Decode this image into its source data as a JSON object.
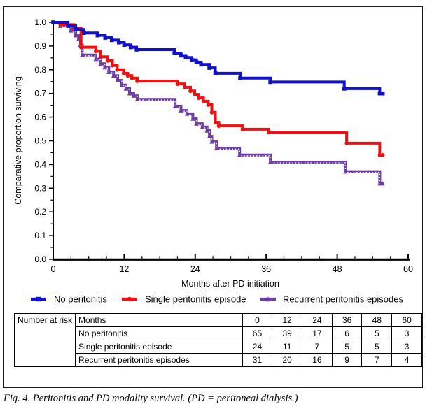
{
  "figure": {
    "caption": "Fig. 4. Peritonitis and PD modality survival. (PD = peritoneal dialysis.)"
  },
  "chart_data": {
    "type": "line",
    "subtype": "kaplan-meier-step",
    "title": "",
    "xlabel": "Months after PD initiation",
    "ylabel": "Comparative proportion surviving",
    "xlim": [
      0,
      60
    ],
    "ylim": [
      0.0,
      1.0
    ],
    "xticks": [
      0,
      12,
      24,
      36,
      48,
      60
    ],
    "xtick_labels": [
      "0",
      "12",
      "24",
      "36",
      "48",
      "60"
    ],
    "x_minor_step": 3,
    "yticks": [
      0.0,
      0.1,
      0.2,
      0.3,
      0.4,
      0.5,
      0.6,
      0.7,
      0.8,
      0.9,
      1.0
    ],
    "ytick_labels": [
      "0.0",
      "0.1",
      "0.2",
      "0.3",
      "0.4",
      "0.5",
      "0.6",
      "0.7",
      "0.8",
      "0.9",
      "1.0"
    ],
    "y_minor_step": 0.05,
    "grid": false,
    "legend_position": "below",
    "axis_color": "#000000",
    "series": [
      {
        "name": "Recurrent peritonitis episodes",
        "color": "#6e3fa3",
        "marker": "triangle",
        "white_dash_overlay": true,
        "end_x": 55.7,
        "points": [
          [
            0,
            1.0
          ],
          [
            1.2,
            0.985
          ],
          [
            3,
            0.965
          ],
          [
            3.8,
            0.945
          ],
          [
            4.3,
            0.93
          ],
          [
            4.6,
            0.905
          ],
          [
            4.9,
            0.862
          ],
          [
            7.2,
            0.845
          ],
          [
            8,
            0.825
          ],
          [
            8.7,
            0.81
          ],
          [
            9.4,
            0.79
          ],
          [
            10.2,
            0.775
          ],
          [
            10.9,
            0.755
          ],
          [
            11.6,
            0.735
          ],
          [
            12.3,
            0.72
          ],
          [
            12.9,
            0.7
          ],
          [
            13.6,
            0.69
          ],
          [
            14.2,
            0.675
          ],
          [
            20.6,
            0.646
          ],
          [
            21.6,
            0.628
          ],
          [
            22.6,
            0.614
          ],
          [
            23.6,
            0.593
          ],
          [
            24.2,
            0.572
          ],
          [
            25.2,
            0.558
          ],
          [
            26,
            0.543
          ],
          [
            26.4,
            0.519
          ],
          [
            26.8,
            0.496
          ],
          [
            27.6,
            0.468
          ],
          [
            31.5,
            0.44
          ],
          [
            36.7,
            0.41
          ],
          [
            49.4,
            0.37
          ],
          [
            55.2,
            0.32
          ]
        ]
      },
      {
        "name": "Single peritonitis episode",
        "color": "#ee1111",
        "marker": "circle",
        "white_dash_overlay": false,
        "end_x": 55.7,
        "points": [
          [
            0,
            1.0
          ],
          [
            1.2,
            0.99
          ],
          [
            3.5,
            0.975
          ],
          [
            4.7,
            0.895
          ],
          [
            7.2,
            0.878
          ],
          [
            8,
            0.855
          ],
          [
            9.2,
            0.838
          ],
          [
            10,
            0.818
          ],
          [
            10.8,
            0.8
          ],
          [
            11.9,
            0.785
          ],
          [
            12.6,
            0.775
          ],
          [
            13.3,
            0.765
          ],
          [
            14.2,
            0.752
          ],
          [
            21,
            0.74
          ],
          [
            22.2,
            0.726
          ],
          [
            23.2,
            0.71
          ],
          [
            23.9,
            0.696
          ],
          [
            24.6,
            0.681
          ],
          [
            25.4,
            0.667
          ],
          [
            26.2,
            0.652
          ],
          [
            26.8,
            0.62
          ],
          [
            27.4,
            0.578
          ],
          [
            28,
            0.563
          ],
          [
            32,
            0.549
          ],
          [
            36.4,
            0.535
          ],
          [
            49.6,
            0.49
          ],
          [
            55.2,
            0.44
          ]
        ]
      },
      {
        "name": "No peritonitis",
        "color": "#1111cc",
        "marker": "square",
        "white_dash_overlay": false,
        "end_x": 55.7,
        "points": [
          [
            0,
            1.0
          ],
          [
            2.5,
            0.985
          ],
          [
            3.8,
            0.97
          ],
          [
            5.2,
            0.955
          ],
          [
            7.5,
            0.945
          ],
          [
            8.8,
            0.935
          ],
          [
            9.9,
            0.925
          ],
          [
            11.1,
            0.915
          ],
          [
            12,
            0.905
          ],
          [
            13.1,
            0.895
          ],
          [
            14.1,
            0.885
          ],
          [
            20.5,
            0.87
          ],
          [
            21.6,
            0.86
          ],
          [
            22.4,
            0.852
          ],
          [
            23.4,
            0.842
          ],
          [
            24.2,
            0.832
          ],
          [
            25,
            0.822
          ],
          [
            26.4,
            0.808
          ],
          [
            27.4,
            0.785
          ],
          [
            31.6,
            0.765
          ],
          [
            36.7,
            0.748
          ],
          [
            49.2,
            0.72
          ],
          [
            55.2,
            0.7
          ]
        ]
      }
    ],
    "legend_order": [
      "No peritonitis",
      "Single peritonitis episode",
      "Recurrent peritonitis episodes"
    ]
  },
  "risk_table": {
    "row_header": "Number at risk",
    "columns_label": "Months",
    "months": [
      "0",
      "12",
      "24",
      "36",
      "48",
      "60"
    ],
    "rows": [
      {
        "label": "No peritonitis",
        "values": [
          "65",
          "39",
          "17",
          "6",
          "5",
          "3"
        ]
      },
      {
        "label": "Single peritonitis episode",
        "values": [
          "24",
          "11",
          "7",
          "5",
          "5",
          "3"
        ]
      },
      {
        "label": "Recurrent peritonitis episodes",
        "values": [
          "31",
          "20",
          "16",
          "9",
          "7",
          "4"
        ]
      }
    ]
  }
}
